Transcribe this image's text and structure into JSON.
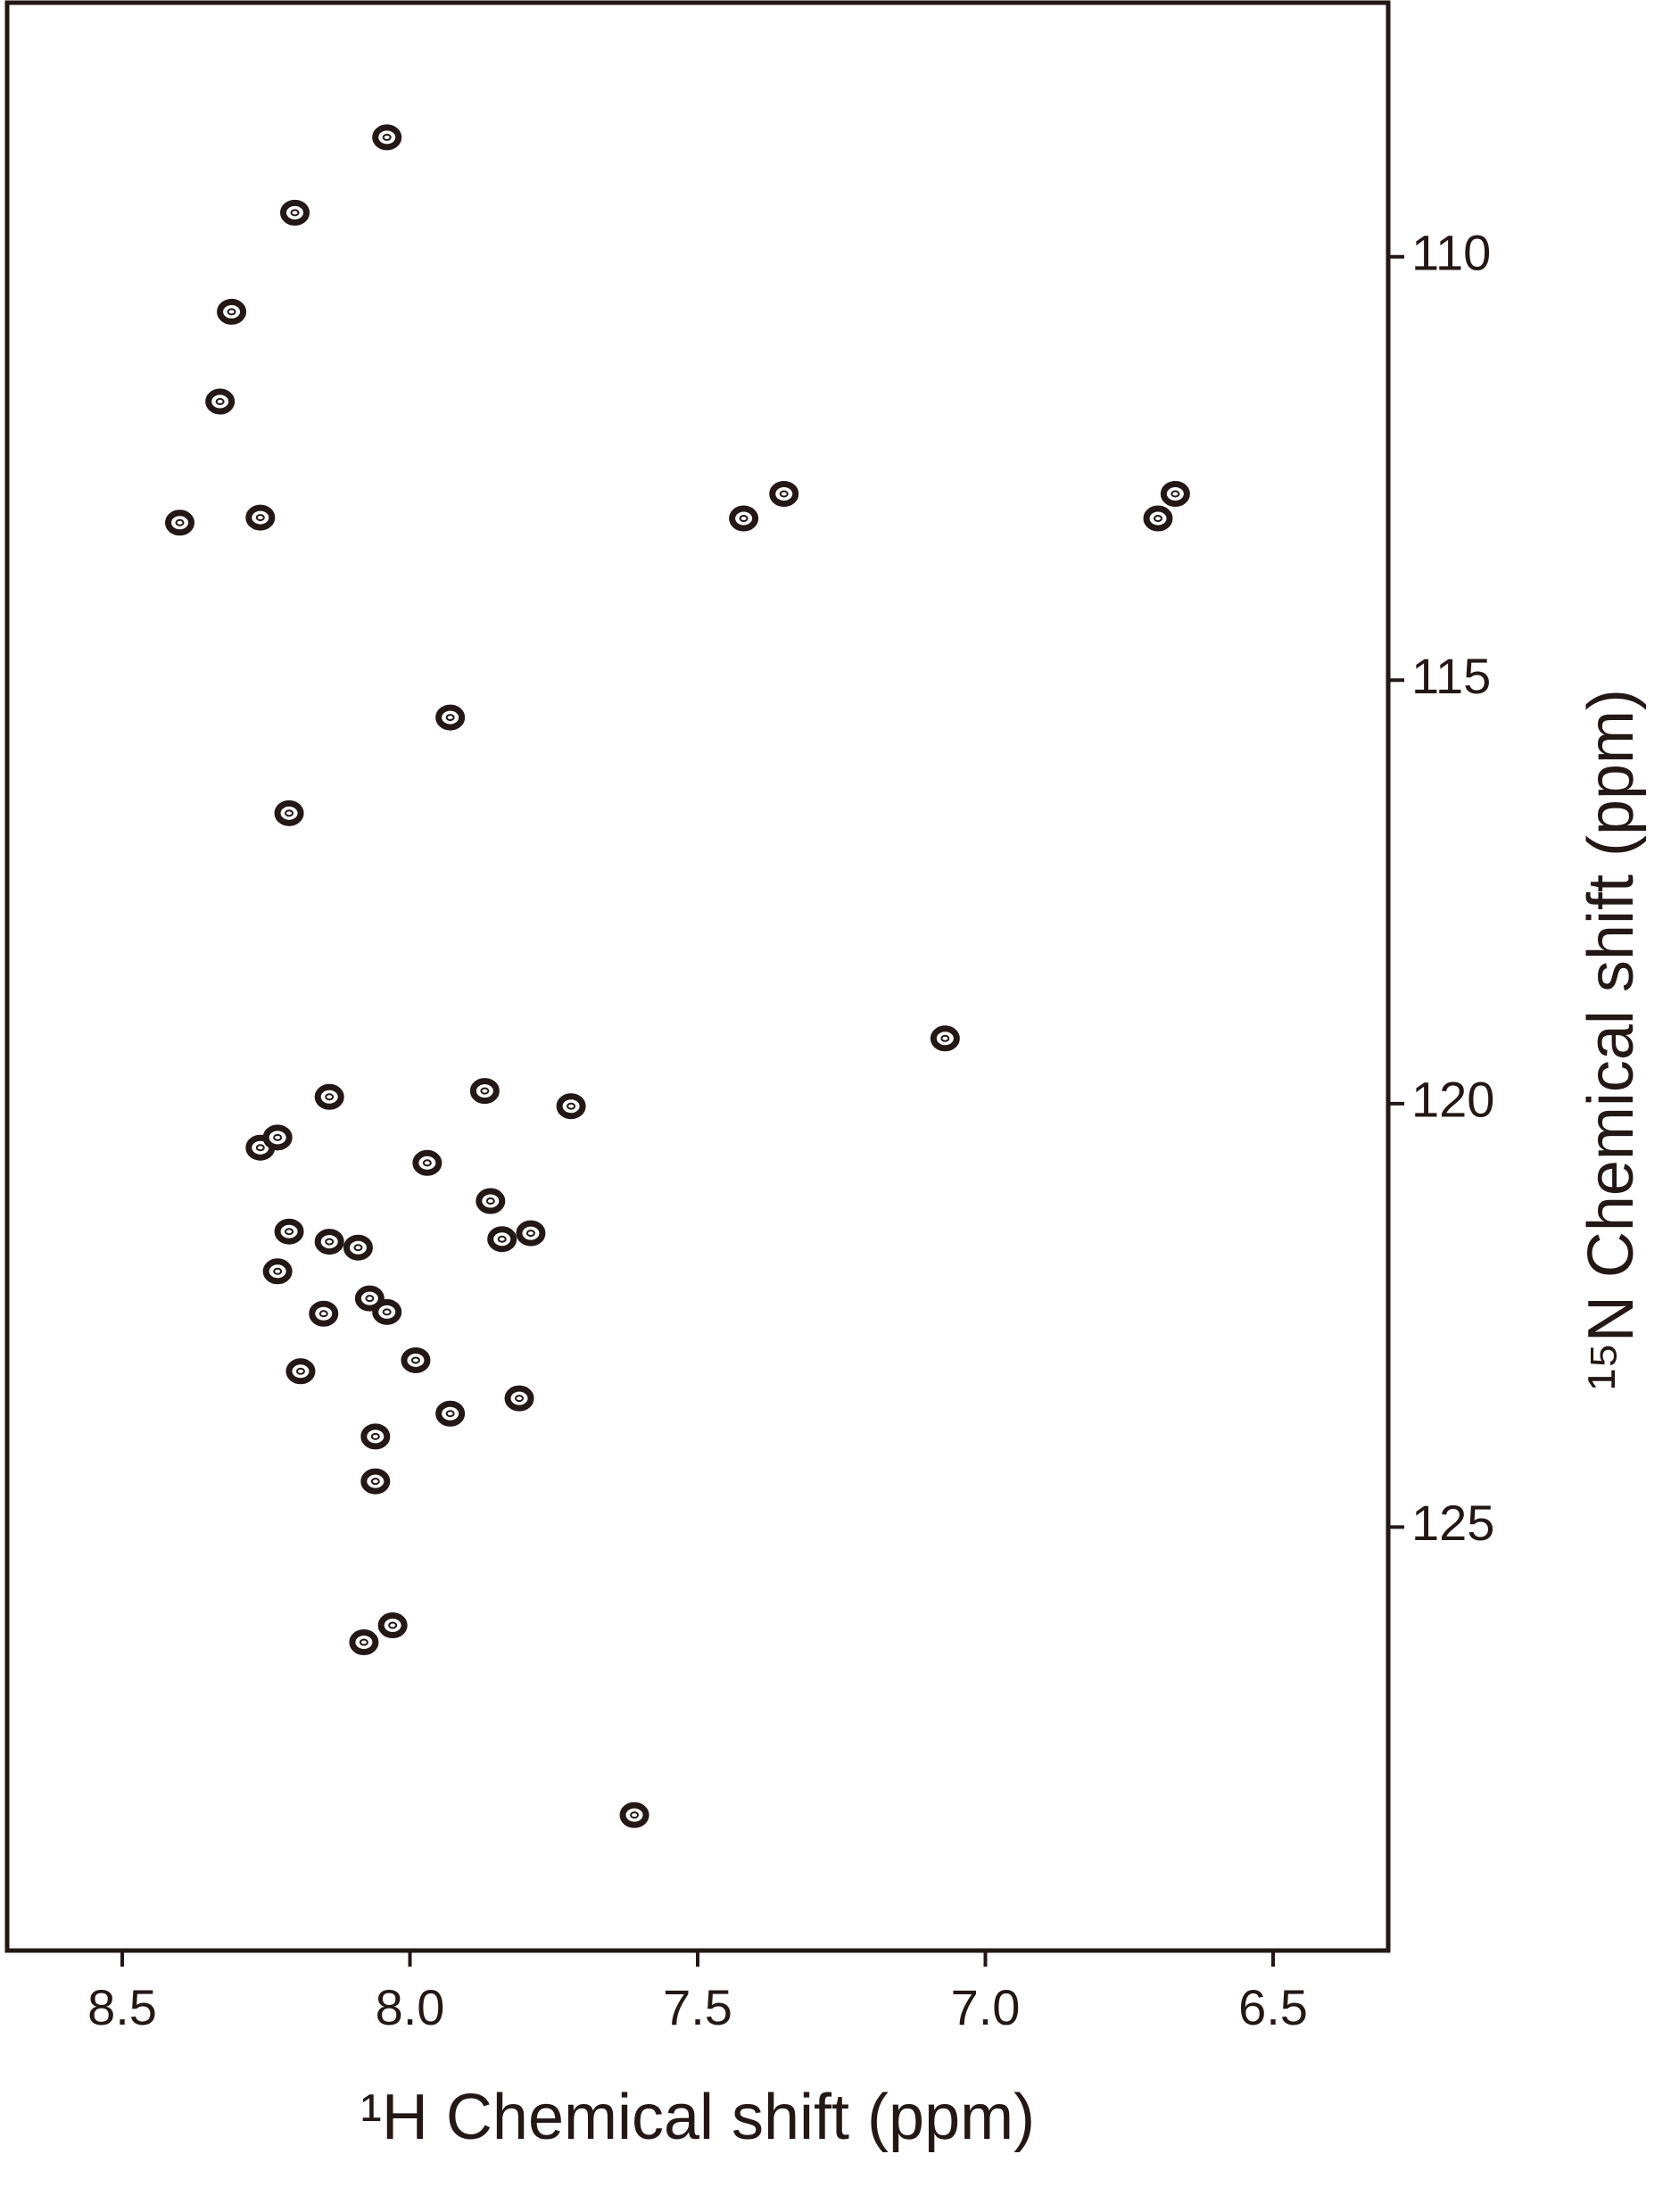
{
  "chart_data": {
    "type": "scatter",
    "x_label": "¹H Chemical shift (ppm)",
    "y_label": "¹⁵N Chemical shift (ppm)",
    "x": [
      8.04,
      8.2,
      8.31,
      8.33,
      8.4,
      8.26,
      7.42,
      7.35,
      6.7,
      6.67,
      7.93,
      8.21,
      7.07,
      8.14,
      7.87,
      7.72,
      8.26,
      8.23,
      7.97,
      7.86,
      7.84,
      7.79,
      8.21,
      8.23,
      8.14,
      8.09,
      8.07,
      8.04,
      8.15,
      7.99,
      8.19,
      7.93,
      7.81,
      8.06,
      8.06,
      8.03,
      8.08,
      7.61
    ],
    "values": [
      108.59,
      109.48,
      110.65,
      111.71,
      113.14,
      113.08,
      113.09,
      112.8,
      113.09,
      112.8,
      115.44,
      116.57,
      119.23,
      119.92,
      119.85,
      120.03,
      120.52,
      120.4,
      120.7,
      121.15,
      121.6,
      121.53,
      121.51,
      121.98,
      121.63,
      121.7,
      122.3,
      122.46,
      122.48,
      123.03,
      123.16,
      123.66,
      123.48,
      123.93,
      124.46,
      126.16,
      126.36,
      128.4
    ],
    "color": "#231815",
    "xlim": [
      8.7,
      6.3
    ],
    "ylim": [
      107,
      130
    ],
    "xticks": [
      8.5,
      {
        "value": 8.0,
        "label": "8.0"
      },
      7.5,
      {
        "value": 7.0,
        "label": "7.0"
      },
      6.5
    ],
    "yticks": [
      110,
      115,
      120,
      125
    ]
  }
}
